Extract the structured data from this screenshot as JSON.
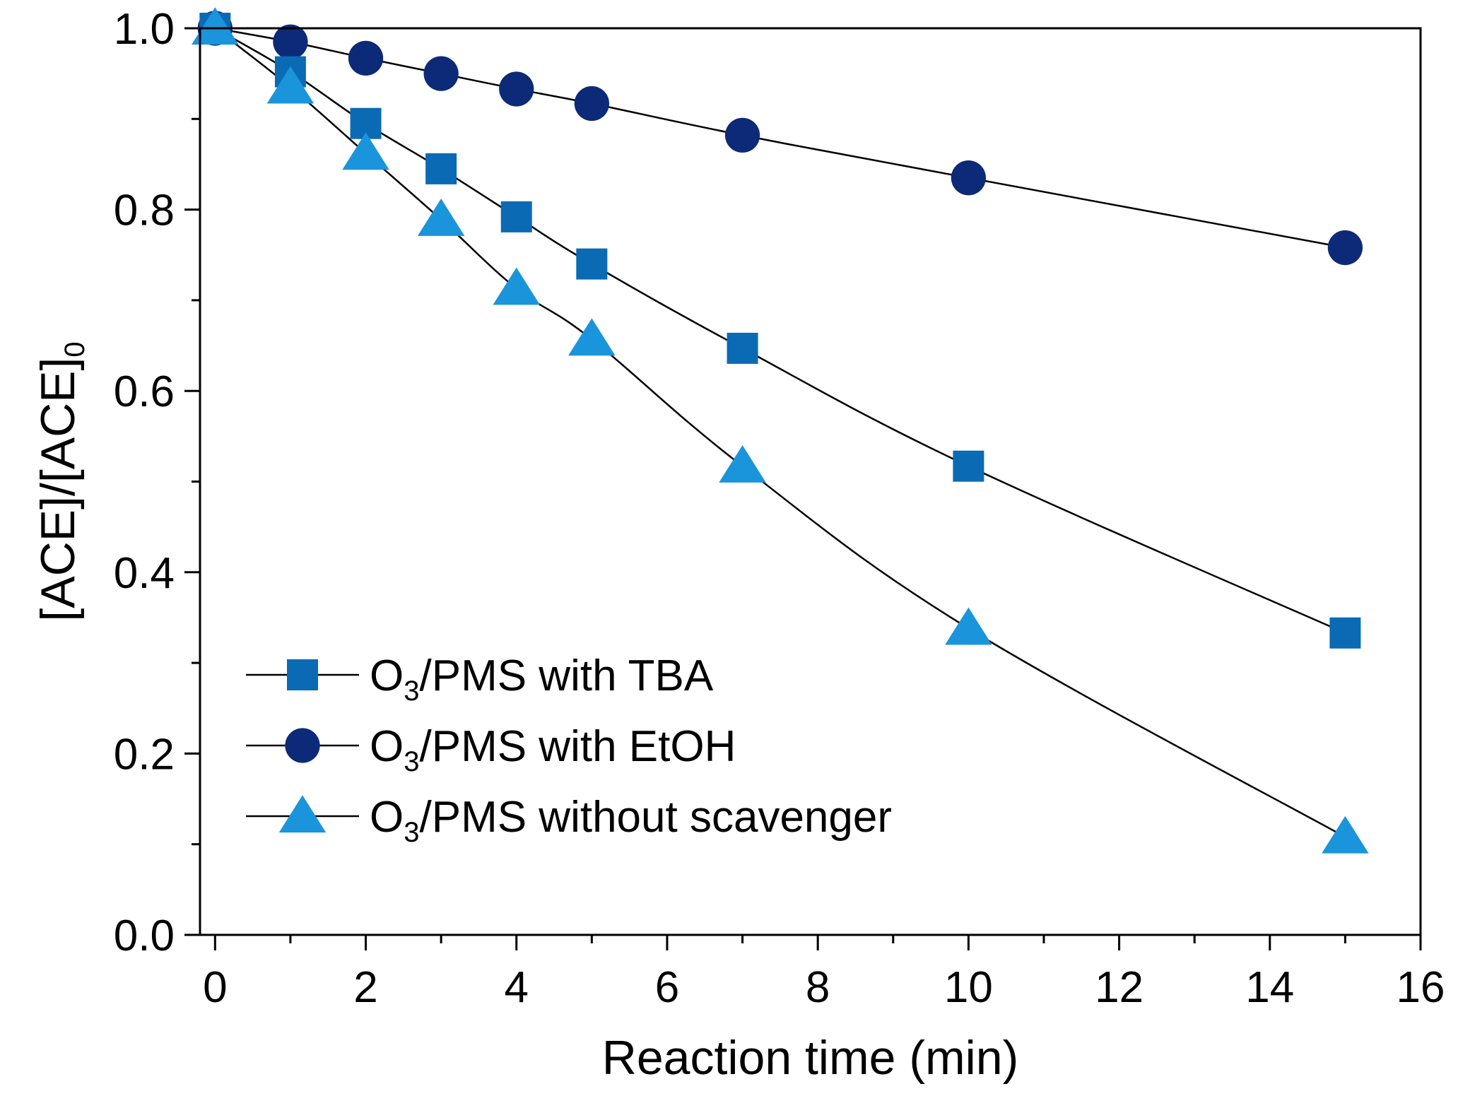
{
  "chart_data": {
    "type": "line",
    "title": "",
    "xlabel": "Reaction time (min)",
    "ylabel": {
      "main": "[ACE]/[ACE]",
      "subscript": "0"
    },
    "xlim": [
      -0.2,
      16
    ],
    "ylim": [
      0,
      1.0
    ],
    "x_ticks": [
      0,
      2,
      4,
      6,
      8,
      10,
      12,
      14,
      16
    ],
    "x_tick_labels": [
      "0",
      "2",
      "4",
      "6",
      "8",
      "10",
      "12",
      "14",
      "16"
    ],
    "y_ticks": [
      0.0,
      0.2,
      0.4,
      0.6,
      0.8,
      1.0
    ],
    "y_tick_labels": [
      "0.0",
      "0.2",
      "0.4",
      "0.6",
      "0.8",
      "1.0"
    ],
    "grid": false,
    "legend_position": "bottom-left",
    "series": [
      {
        "name": "O3/PMS with TBA",
        "label": {
          "pre": "O",
          "sub": "3",
          "post": "/PMS with TBA"
        },
        "marker": "square",
        "color": "#0a6bb4",
        "x": [
          0,
          1,
          2,
          3,
          4,
          5,
          7,
          10,
          15
        ],
        "values": [
          1.0,
          0.952,
          0.895,
          0.845,
          0.792,
          0.74,
          0.647,
          0.517,
          0.333
        ]
      },
      {
        "name": "O3/PMS with EtOH",
        "label": {
          "pre": "O",
          "sub": "3",
          "post": "/PMS with EtOH"
        },
        "marker": "circle",
        "color": "#0d2a78",
        "x": [
          0,
          1,
          2,
          3,
          4,
          5,
          7,
          10,
          15
        ],
        "values": [
          1.0,
          0.985,
          0.967,
          0.95,
          0.933,
          0.917,
          0.882,
          0.835,
          0.758
        ]
      },
      {
        "name": "O3/PMS without scavenger",
        "label": {
          "pre": "O",
          "sub": "3",
          "post": "/PMS without scavenger"
        },
        "marker": "triangle",
        "color": "#1a95db",
        "x": [
          0,
          1,
          2,
          3,
          4,
          5,
          7,
          10,
          15
        ],
        "values": [
          1.0,
          0.935,
          0.862,
          0.789,
          0.713,
          0.657,
          0.517,
          0.338,
          0.108
        ]
      }
    ]
  }
}
